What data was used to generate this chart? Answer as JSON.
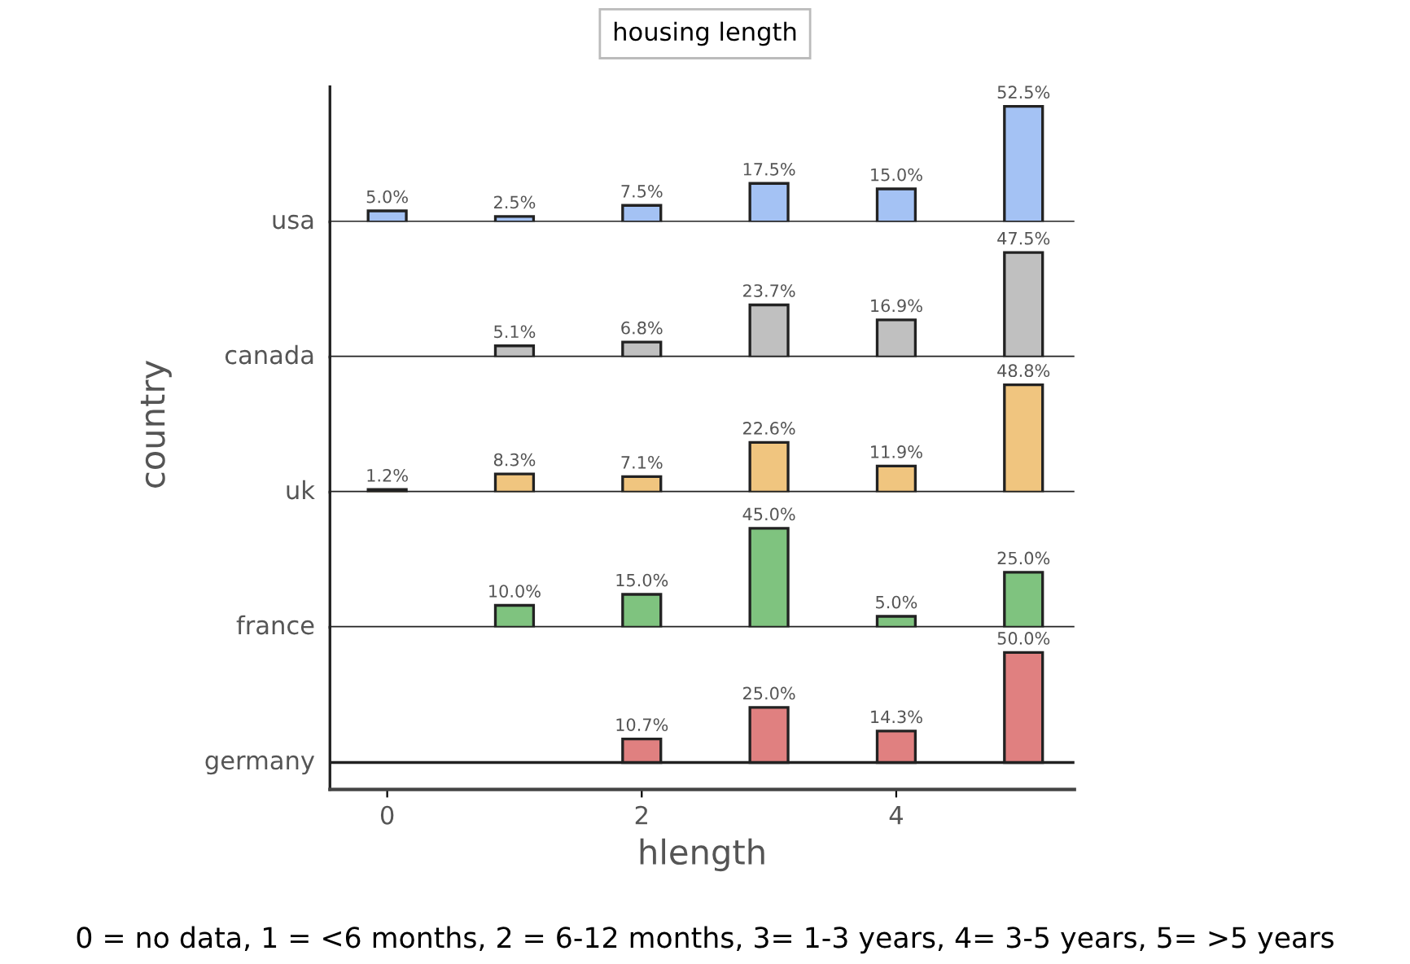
{
  "chart_data": [
    {
      "type": "bar",
      "title": "housing length",
      "x": [
        0,
        1,
        2,
        3,
        4,
        5
      ],
      "xlim": [
        -0.45,
        5.4
      ],
      "tick_labels": false,
      "grid": false,
      "series": [
        {
          "name": "usa",
          "color": "#a4c2f4",
          "values": [
            5.0,
            2.5,
            7.5,
            17.5,
            15.0,
            52.5
          ],
          "value_labels": [
            "5.0%",
            "2.5%",
            "7.5%",
            "17.5%",
            "15.0%",
            "52.5%"
          ]
        }
      ]
    },
    {
      "type": "bar",
      "x": [
        1,
        2,
        3,
        4,
        5
      ],
      "xlim": [
        -0.45,
        5.4
      ],
      "tick_labels": false,
      "grid": false,
      "series": [
        {
          "name": "canada",
          "color": "#c0c0c0",
          "values": [
            5.1,
            6.8,
            23.7,
            16.9,
            47.5
          ],
          "value_labels": [
            "5.1%",
            "6.8%",
            "23.7%",
            "16.9%",
            "47.5%"
          ]
        }
      ]
    },
    {
      "type": "bar",
      "ylabel": "country",
      "x": [
        0,
        1,
        2,
        3,
        4,
        5
      ],
      "xlim": [
        -0.45,
        5.4
      ],
      "tick_labels": false,
      "grid": false,
      "series": [
        {
          "name": "uk",
          "color": "#f0c57f",
          "values": [
            1.2,
            8.3,
            7.1,
            22.6,
            11.9,
            48.8
          ],
          "value_labels": [
            "1.2%",
            "8.3%",
            "7.1%",
            "22.6%",
            "11.9%",
            "48.8%"
          ]
        }
      ]
    },
    {
      "type": "bar",
      "x": [
        1,
        2,
        3,
        4,
        5
      ],
      "xlim": [
        -0.45,
        5.4
      ],
      "tick_labels": false,
      "grid": false,
      "series": [
        {
          "name": "france",
          "color": "#7fc37f",
          "values": [
            10.0,
            15.0,
            45.0,
            5.0,
            25.0
          ],
          "value_labels": [
            "10.0%",
            "15.0%",
            "45.0%",
            "5.0%",
            "25.0%"
          ]
        }
      ]
    },
    {
      "type": "bar",
      "xlabel": "hlength",
      "x": [
        2,
        3,
        4,
        5
      ],
      "xlim": [
        -0.45,
        5.4
      ],
      "xticks": [
        0,
        2,
        4
      ],
      "tick_labels": "x",
      "grid": false,
      "annotations": [
        "0 = no data, 1 = <6 months, 2 = 6-12 months, 3= 1-3 years, 4= 3-5 years, 5= >5 years"
      ],
      "series": [
        {
          "name": "germany",
          "color": "#e08080",
          "values": [
            10.7,
            25.0,
            14.3,
            50.0
          ],
          "value_labels": [
            "10.7%",
            "25.0%",
            "14.3%",
            "50.0%"
          ]
        }
      ]
    }
  ]
}
